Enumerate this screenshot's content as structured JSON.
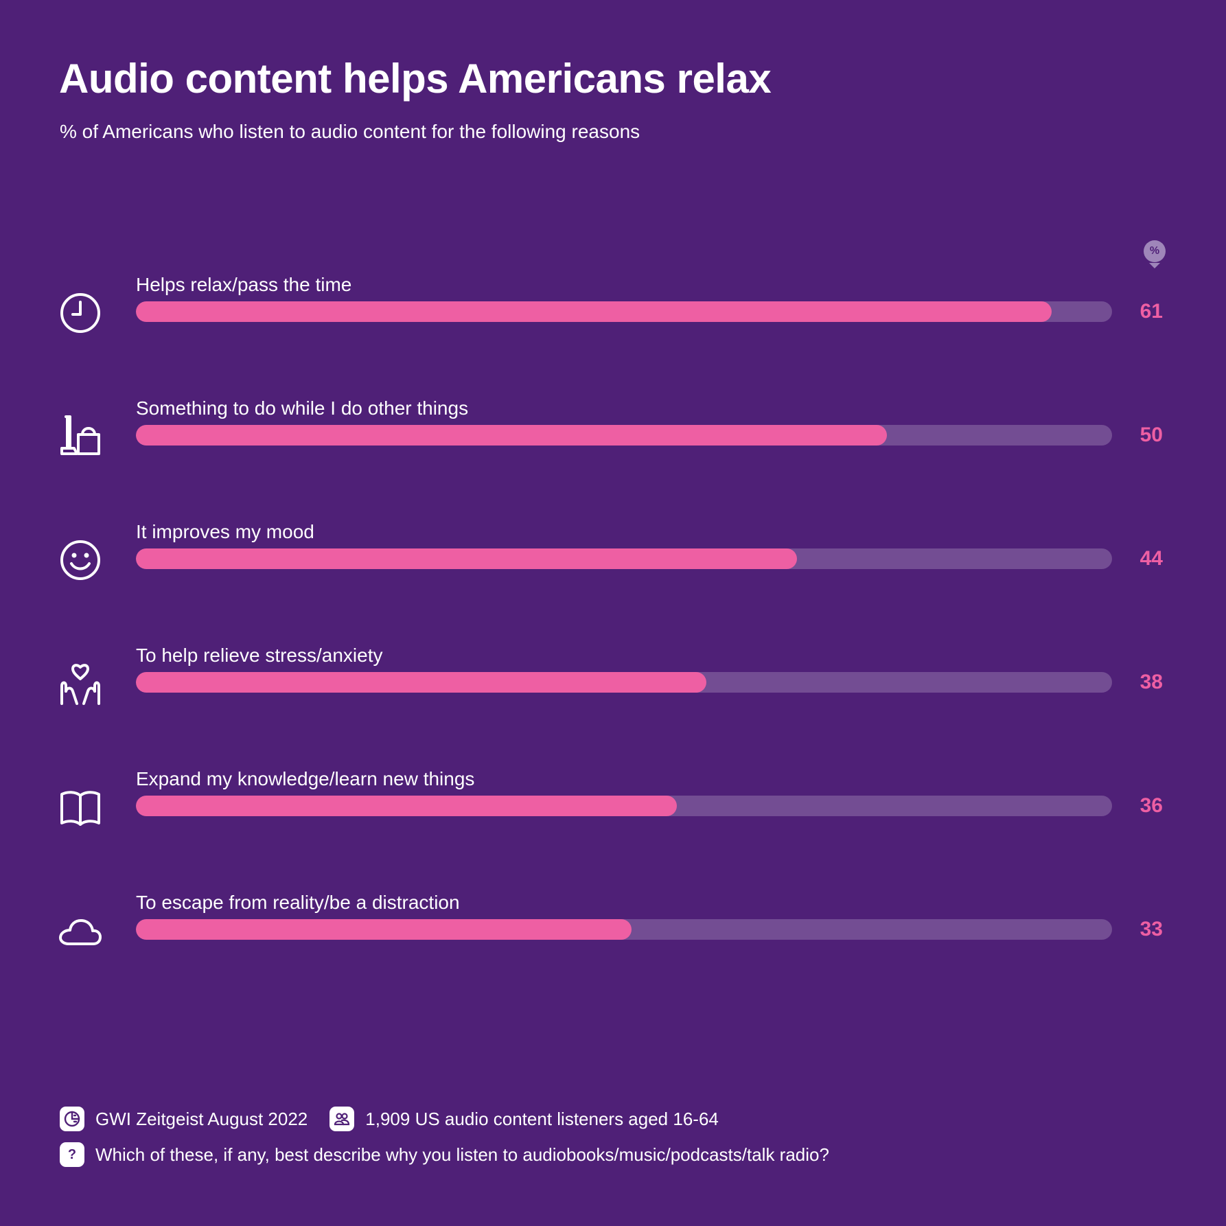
{
  "header": {
    "title": "Audio content helps Americans relax",
    "subtitle": "% of Americans who listen to audio content for the following reasons",
    "unit": "%"
  },
  "chart_data": {
    "type": "bar",
    "orientation": "horizontal",
    "title": "Audio content helps Americans relax",
    "subtitle": "% of Americans who listen to audio content for the following reasons",
    "categories": [
      "Helps relax/pass the time",
      "Something to do while I do other things",
      "It improves my mood",
      "To help relieve stress/anxiety",
      "Expand my knowledge/learn new things",
      "To escape from reality/be a distraction"
    ],
    "values": [
      61,
      50,
      44,
      38,
      36,
      33
    ],
    "xlim": [
      0,
      65
    ],
    "grid": false,
    "colors": {
      "bar": "#ee5fa3",
      "track": "#734d93",
      "background": "#4f2077"
    }
  },
  "rows": [
    {
      "label": "Helps relax/pass the time",
      "value": "61",
      "icon": "clock-icon"
    },
    {
      "label": "Something to do while I do other things",
      "value": "50",
      "icon": "cleaning-bucket-icon"
    },
    {
      "label": "It improves my mood",
      "value": "44",
      "icon": "smiley-icon"
    },
    {
      "label": "To help relieve stress/anxiety",
      "value": "38",
      "icon": "hands-heart-icon"
    },
    {
      "label": "Expand my knowledge/learn new things",
      "value": "36",
      "icon": "open-book-icon"
    },
    {
      "label": "To escape from reality/be a distraction",
      "value": "33",
      "icon": "cloud-icon"
    }
  ],
  "footer": {
    "source": "GWI Zeitgeist August 2022",
    "source_icon": "gwi-logo-icon",
    "sample": "1,909 US audio content listeners aged 16-64",
    "sample_icon": "people-icon",
    "question": "Which of these, if any, best describe why you listen to audiobooks/music/podcasts/talk radio?",
    "question_icon": "question-icon",
    "question_mark": "?"
  }
}
